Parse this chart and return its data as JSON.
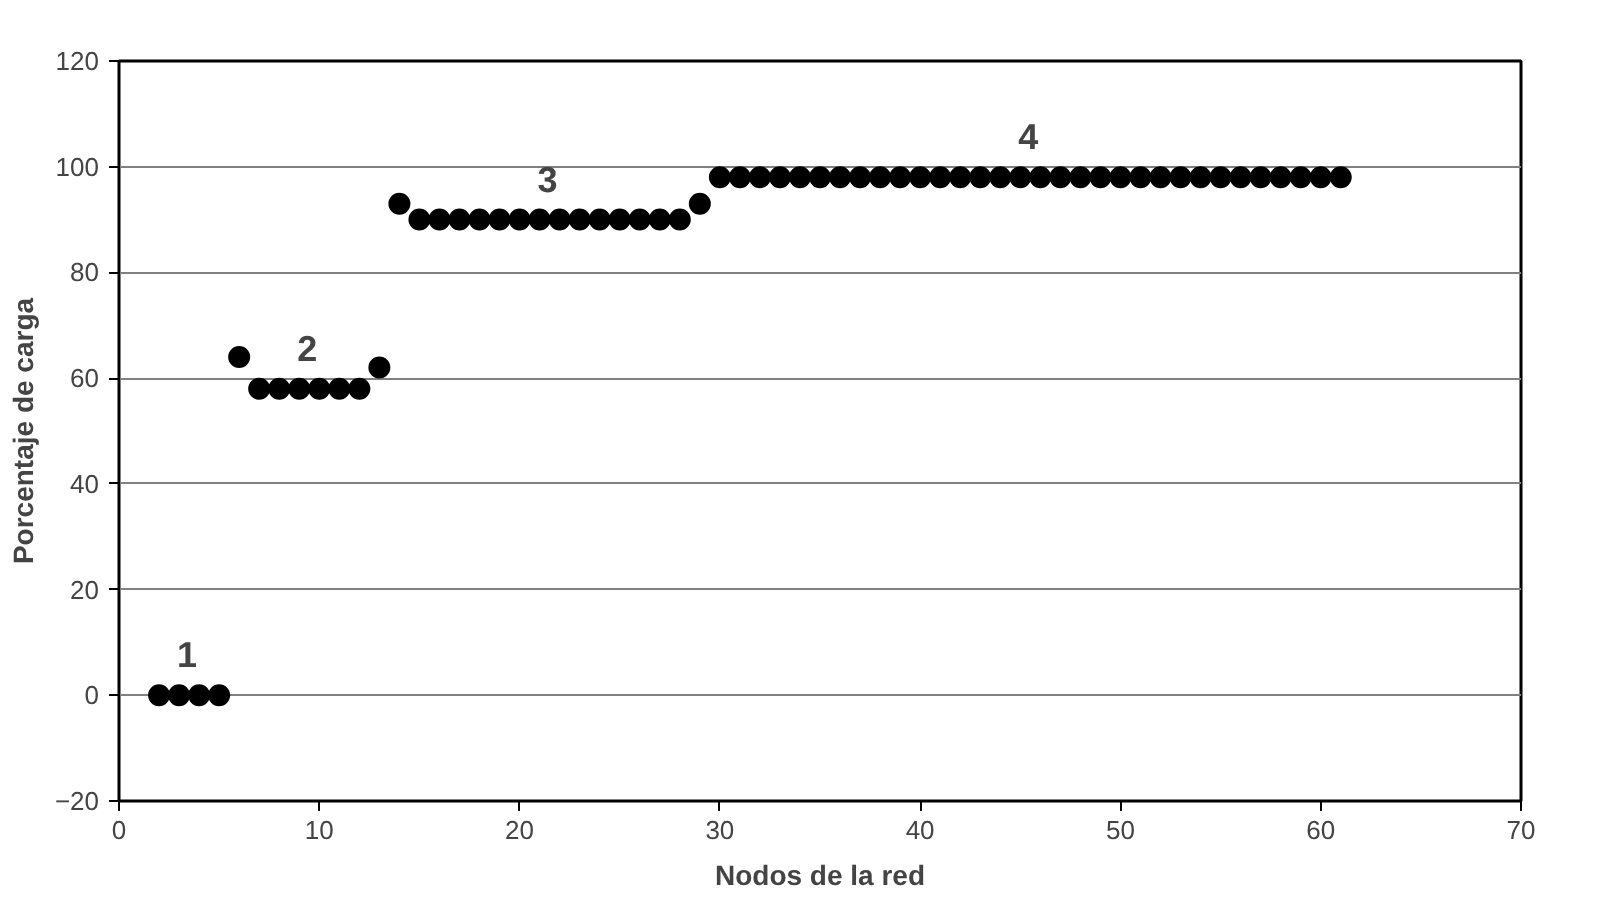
{
  "chart_data": {
    "type": "scatter",
    "xlabel": "Nodos de la red",
    "ylabel": "Porcentaje de carga",
    "x": [
      2,
      3,
      4,
      5,
      6,
      7,
      8,
      9,
      10,
      11,
      12,
      13,
      14,
      15,
      16,
      17,
      18,
      19,
      20,
      21,
      22,
      23,
      24,
      25,
      26,
      27,
      28,
      29,
      30,
      31,
      32,
      33,
      34,
      35,
      36,
      37,
      38,
      39,
      40,
      41,
      42,
      43,
      44,
      45,
      46,
      47,
      48,
      49,
      50,
      51,
      52,
      53,
      54,
      55,
      56,
      57,
      58,
      59,
      60,
      61
    ],
    "series": [
      {
        "color": "#000000",
        "values": [
          0,
          0,
          0,
          0,
          64,
          58,
          58,
          58,
          58,
          58,
          58,
          62,
          93,
          90,
          90,
          90,
          90,
          90,
          90,
          90,
          90,
          90,
          90,
          90,
          90,
          90,
          90,
          93,
          98,
          98,
          98,
          98,
          98,
          98,
          98,
          98,
          98,
          98,
          98,
          98,
          98,
          98,
          98,
          98,
          98,
          98,
          98,
          98,
          98,
          98,
          98,
          98,
          98,
          98,
          98,
          98,
          98,
          98,
          98,
          98
        ]
      }
    ],
    "marker": "circle",
    "xlim": [
      0,
      70
    ],
    "ylim": [
      -20,
      120
    ],
    "xticks": [
      0,
      10,
      20,
      30,
      40,
      50,
      60,
      70
    ],
    "yticks": [
      -20,
      0,
      20,
      40,
      60,
      80,
      100,
      120
    ],
    "grid": "y",
    "annotations": [
      {
        "text": "1",
        "x": 4,
        "y": 0
      },
      {
        "text": "2",
        "x": 10,
        "y": 58
      },
      {
        "text": "3",
        "x": 22,
        "y": 90
      },
      {
        "text": "4",
        "x": 46,
        "y": 98
      }
    ]
  }
}
